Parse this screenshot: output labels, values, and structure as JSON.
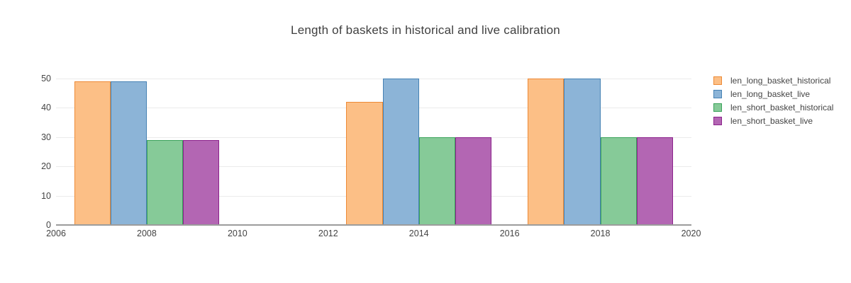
{
  "chart_data": {
    "type": "bar",
    "title": "Length of baskets in historical and live calibration",
    "categories": [
      2008,
      2014,
      2018
    ],
    "series": [
      {
        "name": "len_long_basket_historical",
        "values": [
          49,
          42,
          50
        ],
        "fill": "#fcbf86",
        "line": "#ed8a36"
      },
      {
        "name": "len_long_basket_live",
        "values": [
          49,
          50,
          50
        ],
        "fill": "#8cb4d7",
        "line": "#4682b4"
      },
      {
        "name": "len_short_basket_historical",
        "values": [
          29,
          30,
          30
        ],
        "fill": "#86ca98",
        "line": "#3aa25a"
      },
      {
        "name": "len_short_basket_live",
        "values": [
          29,
          30,
          30
        ],
        "fill": "#b366b3",
        "line": "#8c238c"
      }
    ],
    "bar_width_years": 0.8,
    "x_range": [
      2006,
      2020
    ],
    "x_ticks": [
      2006,
      2008,
      2010,
      2012,
      2014,
      2016,
      2018,
      2020
    ],
    "y_range": [
      0,
      53.8
    ],
    "y_ticks": [
      0,
      10,
      20,
      30,
      40,
      50
    ],
    "grid": "horizontal",
    "legend_position": "right",
    "xlabel": "",
    "ylabel": ""
  },
  "colors": {
    "grid": "#ebebeb",
    "axis_line": "#9c9c9c",
    "tick_text": "#444444",
    "title_text": "#404040",
    "background": "#ffffff"
  }
}
